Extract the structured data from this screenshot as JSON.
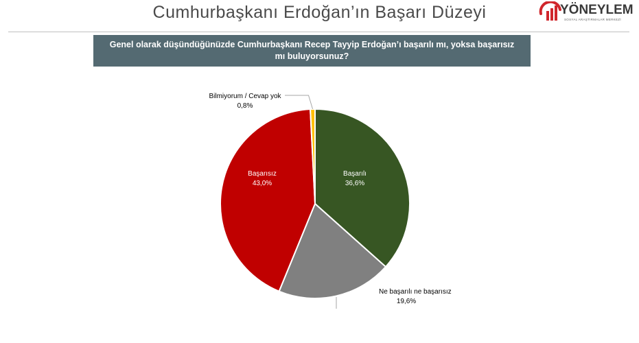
{
  "header": {
    "title": "Cumhurbaşkanı Erdoğan’ın Başarı Düzeyi",
    "logo_text": "YÖNEYLEM",
    "logo_subtitle": "SOSYAL ARAŞTIRMALAR MERKEZİ"
  },
  "question": "Genel olarak düşündüğünüzde Cumhurbaşkanı Recep Tayyip Erdoğan’ı başarılı mı, yoksa başarısız mı buluyorsunuz?",
  "colors": {
    "header_bar": "#546a72",
    "logo_red": "#d0262c"
  },
  "chart_data": {
    "type": "pie",
    "slices": [
      {
        "name": "Başarılı",
        "value": 36.6,
        "label": "36,6%",
        "color": "#375623"
      },
      {
        "name": "Ne başarılı ne başarısız",
        "value": 19.6,
        "label": "19,6%",
        "color": "#808080"
      },
      {
        "name": "Başarısız",
        "value": 43.0,
        "label": "43,0%",
        "color": "#c00000"
      },
      {
        "name": "Bilmiyorum / Cevap yok",
        "value": 0.8,
        "label": "0,8%",
        "color": "#ffc000"
      }
    ]
  }
}
